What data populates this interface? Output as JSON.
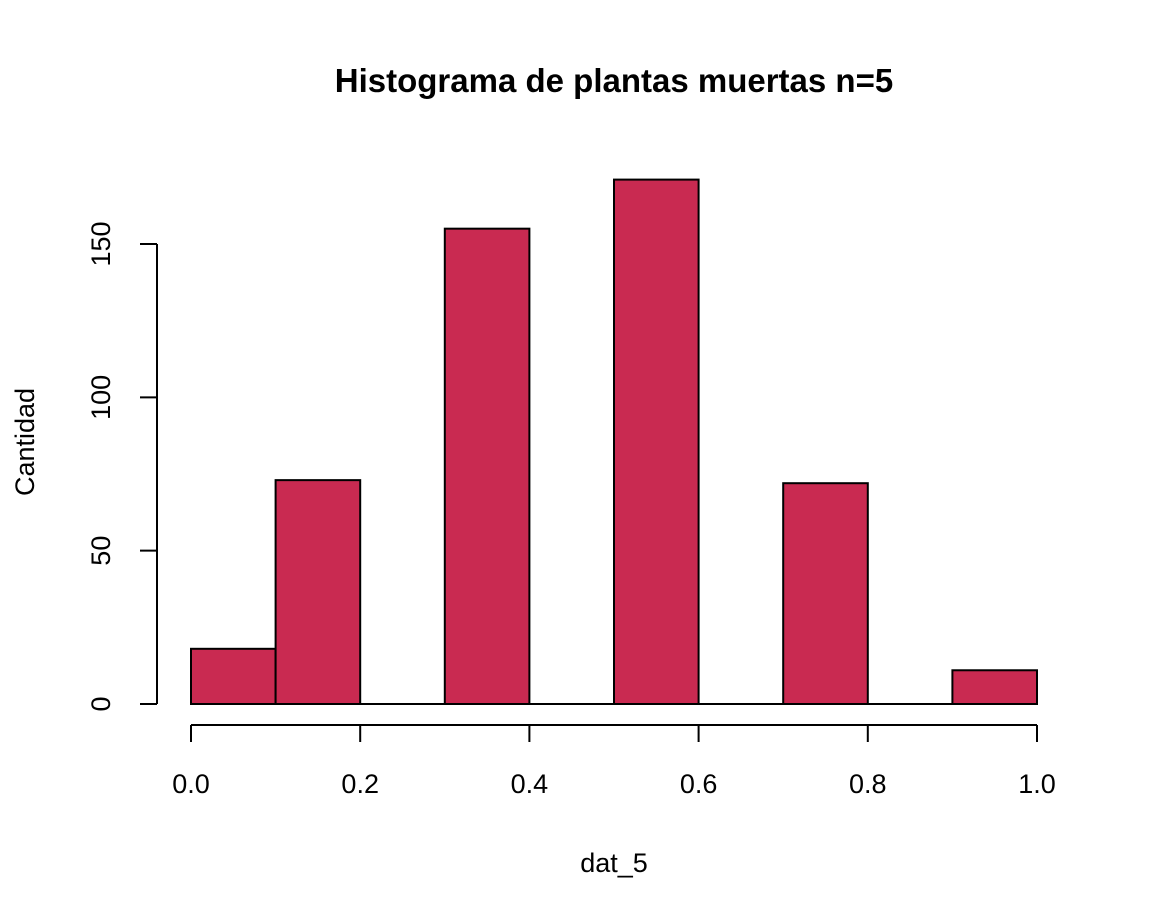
{
  "chart_data": {
    "type": "bar",
    "title": "Histograma de plantas muertas n=5",
    "xlabel": "dat_5",
    "ylabel": "Cantidad",
    "bar_color": "#c92a51",
    "border_color": "#000000",
    "background": "#ffffff",
    "grid": false,
    "xlim": [
      0.0,
      1.0
    ],
    "ylim": [
      0,
      175
    ],
    "x_ticks": [
      0.0,
      0.2,
      0.4,
      0.6,
      0.8,
      1.0
    ],
    "x_tick_labels": [
      "0.0",
      "0.2",
      "0.4",
      "0.6",
      "0.8",
      "1.0"
    ],
    "y_ticks": [
      0,
      50,
      100,
      150
    ],
    "y_tick_labels": [
      "0",
      "50",
      "100",
      "150"
    ],
    "bins": [
      {
        "start": 0.0,
        "end": 0.1,
        "count": 18
      },
      {
        "start": 0.1,
        "end": 0.2,
        "count": 73
      },
      {
        "start": 0.2,
        "end": 0.3,
        "count": 0
      },
      {
        "start": 0.3,
        "end": 0.4,
        "count": 155
      },
      {
        "start": 0.4,
        "end": 0.5,
        "count": 0
      },
      {
        "start": 0.5,
        "end": 0.6,
        "count": 171
      },
      {
        "start": 0.6,
        "end": 0.7,
        "count": 0
      },
      {
        "start": 0.7,
        "end": 0.8,
        "count": 72
      },
      {
        "start": 0.8,
        "end": 0.9,
        "count": 0
      },
      {
        "start": 0.9,
        "end": 1.0,
        "count": 11
      }
    ]
  }
}
